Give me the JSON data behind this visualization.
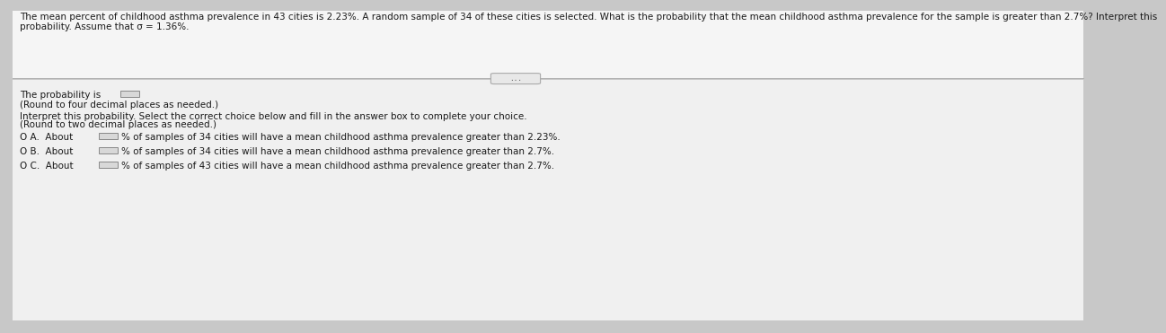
{
  "background_color": "#c8c8c8",
  "top_box_color": "#f5f5f5",
  "bottom_box_color": "#f0f0f0",
  "header_line1": "The mean percent of childhood asthma prevalence in 43 cities is 2.23%. A random sample of 34 of these cities is selected. What is the probability that the mean childhood asthma prevalence for the sample is greater than 2.7%? Interpret this",
  "header_line2": "probability. Assume that σ = 1.36%.",
  "header_fontsize": 7.5,
  "separator_text": "...",
  "prob_line1": "The probability is",
  "prob_line2": "(Round to four decimal places as needed.)",
  "interpret_line1": "Interpret this probability. Select the correct choice below and fill in the answer box to complete your choice.",
  "interpret_line2": "(Round to two decimal places as needed.)",
  "optA_pre": "O A.  About",
  "optA_post": "% of samples of 34 cities will have a mean childhood asthma prevalence greater than 2.23%.",
  "optB_pre": "O B.  About",
  "optB_post": "% of samples of 34 cities will have a mean childhood asthma prevalence greater than 2.7%.",
  "optC_pre": "O C.  About",
  "optC_post": "% of samples of 43 cities will have a mean childhood asthma prevalence greater than 2.7%.",
  "text_color": "#1a1a1a",
  "small_box_color": "#d8d8d8",
  "small_box_border": "#888888",
  "sep_line_color": "#b0b0b0",
  "sep_btn_color": "#e8e8e8",
  "sep_btn_border": "#aaaaaa",
  "sep_btn_text_color": "#666666"
}
